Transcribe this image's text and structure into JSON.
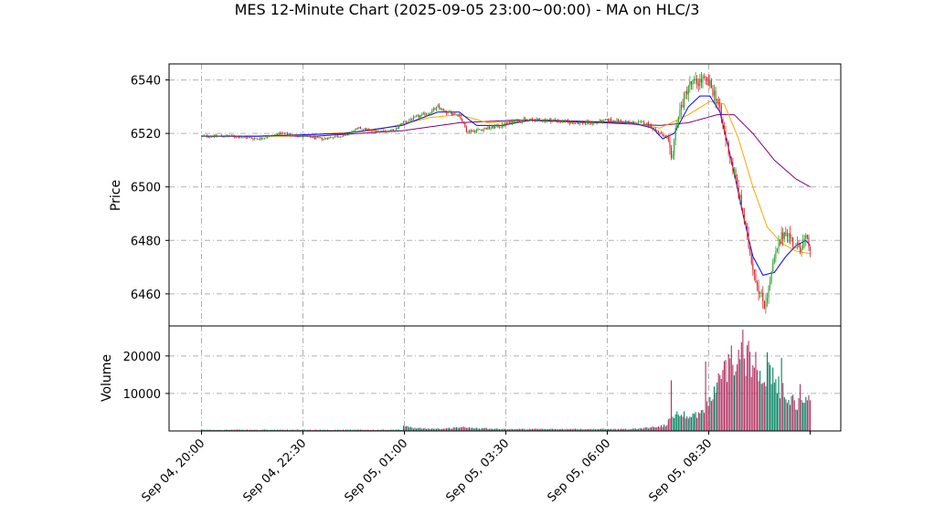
{
  "chart_data": {
    "type": "candlestick",
    "title": "MES 12-Minute Chart (2025-09-05 23:00~00:00) - MA on HLC/3",
    "price_panel": {
      "ylabel": "Price",
      "ylim": [
        6448,
        6546
      ],
      "yticks": [
        6460,
        6480,
        6500,
        6520,
        6540
      ]
    },
    "volume_panel": {
      "ylabel": "Volume",
      "ylim": [
        0,
        28000
      ],
      "yticks": [
        10000,
        20000
      ]
    },
    "x_axis": {
      "ticks": [
        "Sep 04, 20:00",
        "Sep 04, 22:30",
        "Sep 05, 01:00",
        "Sep 05, 03:30",
        "Sep 05, 06:00",
        "Sep 05, 08:30"
      ]
    },
    "grid": true,
    "colors": {
      "up": "#2ca02c",
      "down": "#d62728",
      "ma_fast": "#0000ff",
      "ma_mid": "#ffa500",
      "ma_slow": "#800080",
      "vol_up": "#008060",
      "vol_down": "#b03060"
    },
    "price_path": [
      [
        0,
        6519
      ],
      [
        20,
        6519
      ],
      [
        40,
        6518
      ],
      [
        55,
        6520
      ],
      [
        70,
        6519
      ],
      [
        85,
        6518
      ],
      [
        95,
        6519
      ],
      [
        100,
        6519
      ],
      [
        110,
        6522
      ],
      [
        120,
        6521
      ],
      [
        135,
        6521
      ],
      [
        140,
        6524
      ],
      [
        150,
        6526
      ],
      [
        160,
        6528
      ],
      [
        165,
        6530
      ],
      [
        170,
        6528
      ],
      [
        180,
        6527
      ],
      [
        185,
        6521
      ],
      [
        190,
        6521
      ],
      [
        200,
        6522
      ],
      [
        210,
        6523
      ],
      [
        220,
        6525
      ],
      [
        230,
        6525
      ],
      [
        245,
        6525
      ],
      [
        260,
        6524
      ],
      [
        275,
        6524
      ],
      [
        285,
        6525
      ],
      [
        300,
        6524
      ],
      [
        310,
        6524
      ],
      [
        315,
        6522
      ],
      [
        325,
        6518
      ],
      [
        328,
        6510
      ],
      [
        332,
        6525
      ],
      [
        340,
        6538
      ],
      [
        350,
        6540
      ],
      [
        355,
        6538
      ],
      [
        360,
        6533
      ],
      [
        365,
        6520
      ],
      [
        372,
        6505
      ],
      [
        378,
        6490
      ],
      [
        382,
        6478
      ],
      [
        386,
        6468
      ],
      [
        390,
        6460
      ],
      [
        393,
        6456
      ],
      [
        396,
        6462
      ],
      [
        400,
        6473
      ],
      [
        405,
        6481
      ],
      [
        408,
        6484
      ],
      [
        412,
        6480
      ],
      [
        415,
        6477
      ],
      [
        418,
        6478
      ],
      [
        422,
        6480
      ],
      [
        425,
        6477
      ]
    ],
    "volume_path": [
      [
        0,
        300
      ],
      [
        140,
        300
      ],
      [
        141,
        1300
      ],
      [
        150,
        700
      ],
      [
        170,
        600
      ],
      [
        180,
        1000
      ],
      [
        200,
        700
      ],
      [
        210,
        500
      ],
      [
        300,
        500
      ],
      [
        315,
        1000
      ],
      [
        324,
        1500
      ],
      [
        328,
        3500
      ],
      [
        332,
        5000
      ],
      [
        340,
        4000
      ],
      [
        350,
        5000
      ],
      [
        355,
        8000
      ],
      [
        360,
        12000
      ],
      [
        368,
        18000
      ],
      [
        375,
        21000
      ],
      [
        382,
        19000
      ],
      [
        390,
        17000
      ],
      [
        398,
        14000
      ],
      [
        405,
        11000
      ],
      [
        412,
        8000
      ],
      [
        420,
        7000
      ],
      [
        425,
        9000
      ]
    ],
    "volume_spikes": [
      [
        328,
        13500
      ],
      [
        352,
        18500
      ],
      [
        368,
        20500
      ],
      [
        378,
        27000
      ],
      [
        382,
        24000
      ],
      [
        395,
        21000
      ],
      [
        405,
        19500
      ],
      [
        418,
        12500
      ]
    ],
    "ma_fast": [
      [
        0,
        6519
      ],
      [
        40,
        6519
      ],
      [
        100,
        6520
      ],
      [
        140,
        6523
      ],
      [
        165,
        6528
      ],
      [
        180,
        6528
      ],
      [
        192,
        6523
      ],
      [
        210,
        6523
      ],
      [
        230,
        6525
      ],
      [
        300,
        6524
      ],
      [
        315,
        6522
      ],
      [
        322,
        6518
      ],
      [
        330,
        6520
      ],
      [
        340,
        6530
      ],
      [
        348,
        6534
      ],
      [
        355,
        6534
      ],
      [
        362,
        6528
      ],
      [
        370,
        6510
      ],
      [
        378,
        6490
      ],
      [
        385,
        6474
      ],
      [
        392,
        6467
      ],
      [
        400,
        6468
      ],
      [
        408,
        6474
      ],
      [
        415,
        6478
      ],
      [
        422,
        6480
      ],
      [
        425,
        6478
      ]
    ],
    "ma_mid": [
      [
        0,
        6519
      ],
      [
        60,
        6519
      ],
      [
        120,
        6521
      ],
      [
        160,
        6526
      ],
      [
        180,
        6527
      ],
      [
        200,
        6524
      ],
      [
        240,
        6525
      ],
      [
        300,
        6524
      ],
      [
        320,
        6522
      ],
      [
        340,
        6527
      ],
      [
        355,
        6532
      ],
      [
        365,
        6531
      ],
      [
        375,
        6518
      ],
      [
        385,
        6500
      ],
      [
        395,
        6485
      ],
      [
        405,
        6479
      ],
      [
        415,
        6476
      ],
      [
        425,
        6475
      ]
    ],
    "ma_slow": [
      [
        0,
        6519
      ],
      [
        80,
        6519
      ],
      [
        140,
        6521
      ],
      [
        180,
        6524
      ],
      [
        220,
        6525
      ],
      [
        280,
        6524
      ],
      [
        320,
        6523
      ],
      [
        340,
        6524
      ],
      [
        360,
        6527
      ],
      [
        372,
        6527
      ],
      [
        385,
        6520
      ],
      [
        400,
        6510
      ],
      [
        415,
        6503
      ],
      [
        425,
        6500
      ]
    ]
  }
}
